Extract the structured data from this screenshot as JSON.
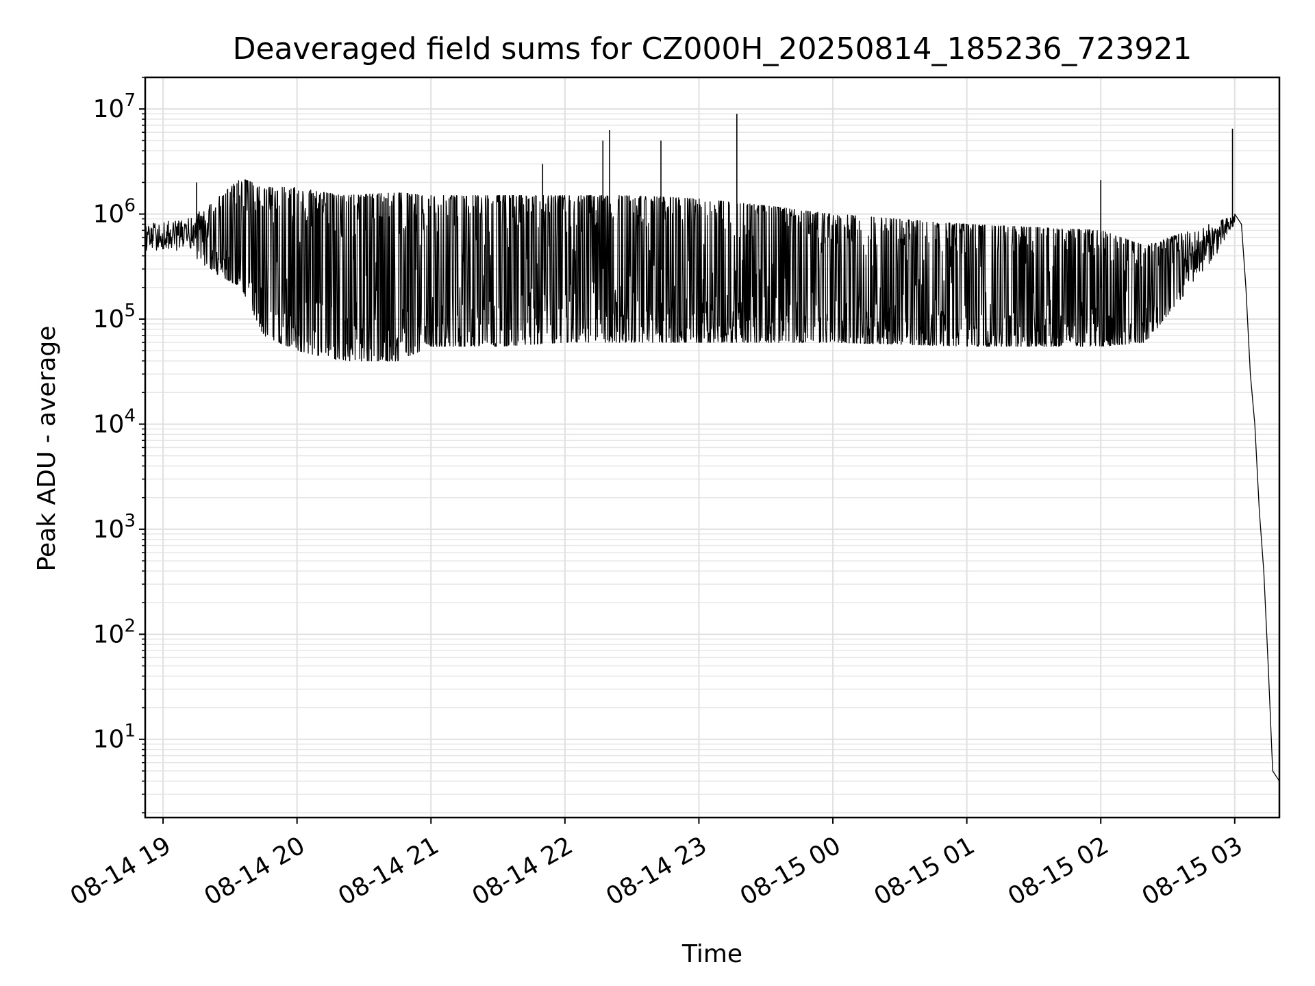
{
  "chart_data": {
    "type": "line",
    "title": "Deaveraged field sums for CZ000H_20250814_185236_723921",
    "xlabel": "Time",
    "ylabel": "Peak ADU - average",
    "yscale": "log",
    "ylim": [
      1.8,
      20000000
    ],
    "xlim": [
      "2025-08-14 18:52",
      "2025-08-15 03:20"
    ],
    "grid": "major and minor",
    "x_ticks": [
      {
        "value": "2025-08-14 19:00",
        "label": "08-14 19"
      },
      {
        "value": "2025-08-14 20:00",
        "label": "08-14 20"
      },
      {
        "value": "2025-08-14 21:00",
        "label": "08-14 21"
      },
      {
        "value": "2025-08-14 22:00",
        "label": "08-14 22"
      },
      {
        "value": "2025-08-14 23:00",
        "label": "08-14 23"
      },
      {
        "value": "2025-08-15 00:00",
        "label": "08-15 00"
      },
      {
        "value": "2025-08-15 01:00",
        "label": "08-15 01"
      },
      {
        "value": "2025-08-15 02:00",
        "label": "08-15 02"
      },
      {
        "value": "2025-08-15 03:00",
        "label": "08-15 03"
      }
    ],
    "y_ticks": [
      {
        "value": 10,
        "base": "10",
        "exp": "1"
      },
      {
        "value": 100,
        "base": "10",
        "exp": "2"
      },
      {
        "value": 1000,
        "base": "10",
        "exp": "3"
      },
      {
        "value": 10000,
        "base": "10",
        "exp": "4"
      },
      {
        "value": 100000,
        "base": "10",
        "exp": "5"
      },
      {
        "value": 1000000,
        "base": "10",
        "exp": "6"
      },
      {
        "value": 10000000,
        "base": "10",
        "exp": "7"
      }
    ],
    "series": [
      {
        "color": "#000000",
        "envelope": [
          {
            "x": "2025-08-14 18:52",
            "low": 450000,
            "high": 800000
          },
          {
            "x": "2025-08-14 19:10",
            "low": 450000,
            "high": 900000
          },
          {
            "x": "2025-08-14 19:20",
            "low": 300000,
            "high": 1200000
          },
          {
            "x": "2025-08-14 19:35",
            "low": 200000,
            "high": 2200000
          },
          {
            "x": "2025-08-14 19:45",
            "low": 70000,
            "high": 1800000
          },
          {
            "x": "2025-08-14 20:00",
            "low": 50000,
            "high": 1800000
          },
          {
            "x": "2025-08-14 20:20",
            "low": 40000,
            "high": 1500000
          },
          {
            "x": "2025-08-14 20:45",
            "low": 40000,
            "high": 1600000
          },
          {
            "x": "2025-08-14 21:00",
            "low": 55000,
            "high": 1500000
          },
          {
            "x": "2025-08-14 21:30",
            "low": 55000,
            "high": 1500000
          },
          {
            "x": "2025-08-14 22:00",
            "low": 60000,
            "high": 1500000
          },
          {
            "x": "2025-08-14 22:30",
            "low": 60000,
            "high": 1500000
          },
          {
            "x": "2025-08-14 23:00",
            "low": 60000,
            "high": 1400000
          },
          {
            "x": "2025-08-14 23:30",
            "low": 60000,
            "high": 1200000
          },
          {
            "x": "2025-08-15 00:00",
            "low": 60000,
            "high": 1000000
          },
          {
            "x": "2025-08-15 01:00",
            "low": 55000,
            "high": 800000
          },
          {
            "x": "2025-08-15 02:00",
            "low": 55000,
            "high": 700000
          },
          {
            "x": "2025-08-15 02:20",
            "low": 60000,
            "high": 500000
          },
          {
            "x": "2025-08-15 02:40",
            "low": 200000,
            "high": 700000
          },
          {
            "x": "2025-08-15 02:55",
            "low": 500000,
            "high": 900000
          },
          {
            "x": "2025-08-15 03:00",
            "low": 800000,
            "high": 1000000
          }
        ],
        "spikes": [
          {
            "x": "2025-08-14 19:15",
            "y": 2000000
          },
          {
            "x": "2025-08-14 21:50",
            "y": 3000000
          },
          {
            "x": "2025-08-14 22:17",
            "y": 5000000
          },
          {
            "x": "2025-08-14 22:20",
            "y": 6300000
          },
          {
            "x": "2025-08-14 22:43",
            "y": 5000000
          },
          {
            "x": "2025-08-14 23:17",
            "y": 9000000
          },
          {
            "x": "2025-08-15 02:00",
            "y": 2100000
          },
          {
            "x": "2025-08-15 02:59",
            "y": 6500000
          }
        ],
        "tail": [
          {
            "x": "2025-08-15 03:00",
            "y": 1000000
          },
          {
            "x": "2025-08-15 03:03",
            "y": 800000
          },
          {
            "x": "2025-08-15 03:05",
            "y": 200000
          },
          {
            "x": "2025-08-15 03:07",
            "y": 30000
          },
          {
            "x": "2025-08-15 03:09",
            "y": 10000
          },
          {
            "x": "2025-08-15 03:11",
            "y": 1500
          },
          {
            "x": "2025-08-15 03:13",
            "y": 400
          },
          {
            "x": "2025-08-15 03:15",
            "y": 50
          },
          {
            "x": "2025-08-15 03:17",
            "y": 5
          },
          {
            "x": "2025-08-15 03:20",
            "y": 4
          }
        ]
      }
    ]
  }
}
